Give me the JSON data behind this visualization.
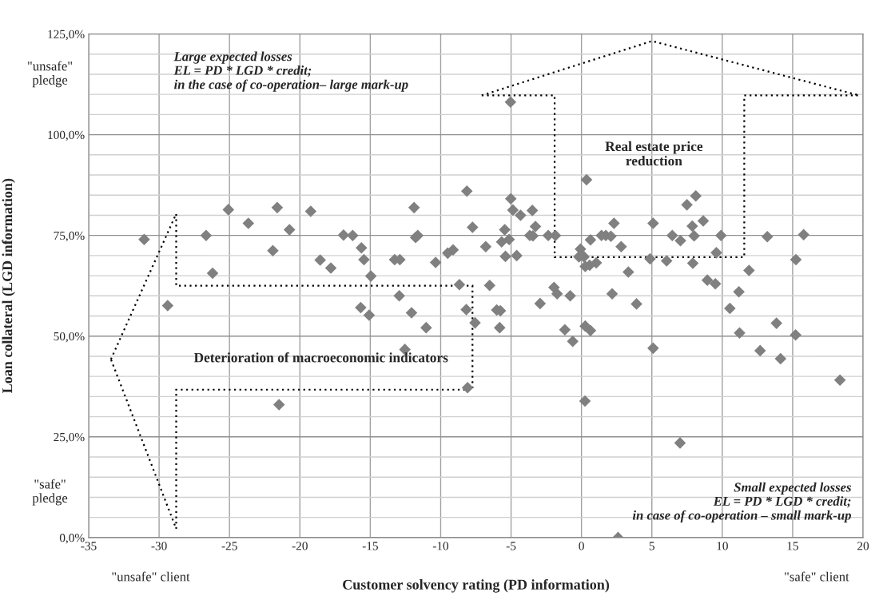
{
  "chart_data": {
    "type": "scatter",
    "xlabel": "Customer solvency rating (PD information)",
    "ylabel": "Loan collateral (LGD information)",
    "x": [
      -31.06,
      -29.39,
      -26.66,
      -26.2,
      -25.08,
      -23.66,
      -21.92,
      -21.61,
      -20.74,
      -19.23,
      -18.56,
      -17.8,
      -16.9,
      -16.25,
      -15.63,
      -15.45,
      -14.96,
      -15.68,
      -15.08,
      -13.27,
      -12.9,
      -12.94,
      -12.07,
      -12.54,
      -11.89,
      -11.78,
      -11.63,
      -11.03,
      -10.36,
      -9.5,
      -9.12,
      -8.67,
      -8.18,
      -7.56,
      -8.14,
      -7.74,
      -6.8,
      -6.52,
      -6.02,
      -5.76,
      -5.81,
      -5.45,
      -5.67,
      -5.14,
      -5.4,
      -4.6,
      -5.04,
      -5.02,
      -4.87,
      -4.33,
      -3.49,
      -3.27,
      -3.67,
      -3.45,
      -2.94,
      -2.36,
      -1.85,
      -1.95,
      -1.73,
      -0.8,
      -1.18,
      -0.62,
      -0.07,
      -0.18,
      0.18,
      0.36,
      0.64,
      0.27,
      0.58,
      1.05,
      1.42,
      0.27,
      0.64,
      1.73,
      2.09,
      2.31,
      2.82,
      3.33,
      2.18,
      3.91,
      5.09,
      4.87,
      6.05,
      6.45,
      7.03,
      7.49,
      8.12,
      7.87,
      8.0,
      8.65,
      7.91,
      8.94,
      9.51,
      9.58,
      9.91,
      11.9,
      11.18,
      10.54,
      11.23,
      12.69,
      13.85,
      14.14,
      15.21,
      15.23,
      13.2,
      15.78,
      18.36,
      5.09,
      -21.48,
      -8.09,
      0.25,
      7.0,
      2.6
    ],
    "values": [
      74.0,
      57.6,
      75.0,
      65.6,
      81.4,
      78.0,
      71.2,
      81.9,
      76.4,
      81.0,
      68.9,
      66.9,
      75.1,
      75.0,
      71.9,
      69.0,
      64.9,
      57.1,
      55.2,
      69.0,
      69.0,
      60.0,
      55.8,
      46.7,
      81.9,
      74.5,
      75.0,
      52.1,
      68.3,
      70.6,
      71.4,
      62.8,
      56.6,
      53.3,
      86.0,
      77.0,
      72.2,
      62.6,
      56.5,
      56.3,
      52.1,
      76.4,
      73.4,
      74.0,
      69.8,
      70.0,
      108.1,
      84.1,
      81.3,
      80.0,
      81.2,
      77.2,
      75.0,
      74.9,
      58.1,
      75.0,
      75.0,
      62.1,
      60.5,
      60.0,
      51.6,
      48.7,
      71.6,
      69.7,
      69.7,
      88.8,
      73.9,
      67.3,
      67.6,
      68.2,
      75.0,
      52.5,
      51.4,
      75.0,
      74.8,
      78.0,
      72.2,
      65.9,
      60.5,
      58.0,
      78.0,
      69.2,
      68.7,
      75.0,
      73.7,
      82.6,
      84.8,
      77.3,
      74.9,
      78.6,
      68.1,
      63.9,
      63.0,
      70.7,
      75.0,
      66.3,
      61.0,
      56.9,
      50.8,
      46.4,
      53.2,
      44.4,
      50.3,
      69.0,
      74.7,
      75.2,
      39.1,
      47.0,
      33.0,
      37.2,
      33.9,
      23.5,
      0
    ],
    "color": "#808080",
    "marker": "diamond",
    "grid": true,
    "xlim": [
      -35,
      20
    ],
    "xticks": [
      -35,
      -30,
      -25,
      -20,
      -15,
      -10,
      -5,
      0,
      5,
      10,
      15,
      20
    ],
    "ylim": [
      0,
      125
    ],
    "yticks": [
      {
        "value": 0,
        "label": "0,0%"
      },
      {
        "value": 25,
        "label": "25,0%"
      },
      {
        "value": 50,
        "label": "50,0%"
      },
      {
        "value": 75,
        "label": "75,0%"
      },
      {
        "value": 100,
        "label": "100,0%"
      },
      {
        "value": 125,
        "label": "125,0%"
      }
    ],
    "annotations": [
      "\"unsafe\"\npledge",
      "\"safe\"\npledge",
      "\"unsafe\" client",
      "\"safe\" client",
      "Large expected losses\nEL = PD * LGD * credit;\nin the case of co-operation– large mark-up",
      "Small expected losses\nEL = PD * LGD * credit;\nin case of co-operation – small mark-up",
      "Real estate price\nreduction",
      "Deterioration of macroeconomic indicators"
    ]
  }
}
